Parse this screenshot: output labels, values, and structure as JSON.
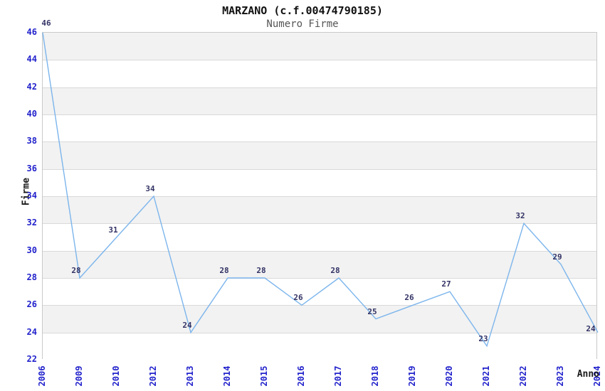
{
  "title": "MARZANO (c.f.00474790185)",
  "subtitle": "Numero Firme",
  "axis": {
    "x_title": "Anno",
    "y_title": "Firme"
  },
  "chart_data": {
    "type": "line",
    "title": "MARZANO (c.f.00474790185)",
    "subtitle": "Numero Firme",
    "xlabel": "Anno",
    "ylabel": "Firme",
    "categories": [
      "2006",
      "2009",
      "2010",
      "2012",
      "2013",
      "2014",
      "2015",
      "2016",
      "2017",
      "2018",
      "2019",
      "2020",
      "2021",
      "2022",
      "2023",
      "2024"
    ],
    "values": [
      46,
      28,
      31,
      34,
      24,
      28,
      28,
      26,
      28,
      25,
      26,
      27,
      23,
      32,
      29,
      24
    ],
    "ylim": [
      22,
      46
    ],
    "y_ticks": [
      46,
      44,
      42,
      40,
      38,
      36,
      34,
      32,
      30,
      28,
      26,
      24,
      22
    ],
    "grid": "horizontal-bands",
    "data_labels": true,
    "markers": false,
    "legend": "none"
  },
  "colors": {
    "line": "#7cb5ec",
    "data_label": "#333366",
    "tick_label": "#2222cc",
    "band_gray": "#f2f2f2",
    "band_white": "#ffffff",
    "gridline": "#d9d9d9",
    "plot_border": "#c9c9c9",
    "title": "#111111",
    "subtitle": "#555555",
    "axis_title": "#1a1a1a",
    "background": "#ffffff"
  }
}
